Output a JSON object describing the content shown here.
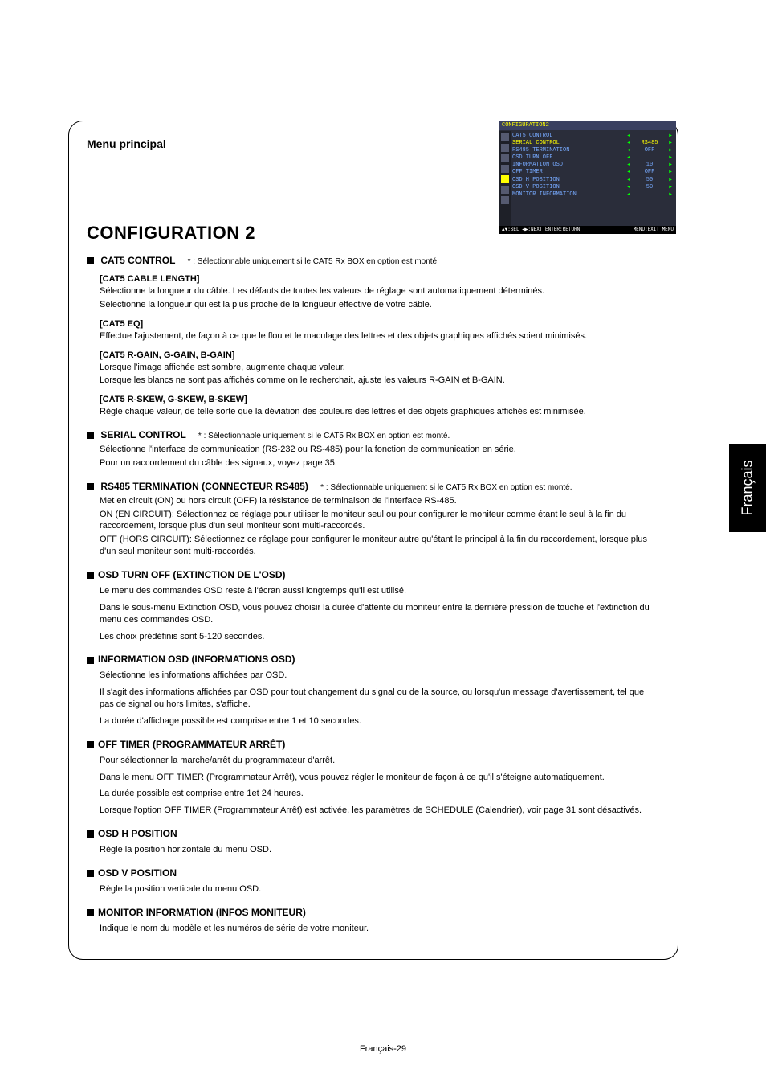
{
  "side_tab": "Français",
  "page_number": "Français-29",
  "menu_principal": "Menu principal",
  "config_title": "CONFIGURATION 2",
  "cat5": {
    "title": "CAT5 CONTROL",
    "note": "* : Sélectionnable uniquement si le CAT5 Rx BOX en option est monté.",
    "cable_length": {
      "title": "[CAT5 CABLE LENGTH]",
      "text1": "Sélectionne la longueur du câble. Les défauts de toutes les valeurs de réglage sont automatiquement déterminés.",
      "text2": "Sélectionne la longueur qui est la plus proche de la longueur effective de votre câble."
    },
    "eq": {
      "title": "[CAT5 EQ]",
      "text": "Effectue l'ajustement, de façon à ce que le flou et le maculage des lettres et des objets graphiques affichés soient minimisés."
    },
    "gain": {
      "title": "[CAT5 R-GAIN, G-GAIN, B-GAIN]",
      "text1": "Lorsque l'image affichée est sombre, augmente chaque valeur.",
      "text2": "Lorsque les blancs ne sont pas affichés comme on le recherchait, ajuste les valeurs R-GAIN et B-GAIN."
    },
    "skew": {
      "title": "[CAT5 R-SKEW, G-SKEW, B-SKEW]",
      "text": "Règle chaque valeur, de telle sorte que la déviation des couleurs des lettres et des objets graphiques affichés est minimisée."
    }
  },
  "serial": {
    "title": "SERIAL CONTROL",
    "note": "* : Sélectionnable uniquement si le CAT5 Rx BOX en option est monté.",
    "text1": "Sélectionne l'interface de communication (RS-232 ou RS-485) pour la fonction de communication en série.",
    "text2": "Pour un raccordement du câble des signaux, voyez page 35."
  },
  "rs485": {
    "title": "RS485 TERMINATION (CONNECTEUR RS485)",
    "note": "* : Sélectionnable uniquement si le CAT5 Rx BOX en option est monté.",
    "text1": "Met en circuit (ON) ou hors circuit (OFF) la résistance de terminaison de l'interface RS-485.",
    "text2": "ON (EN CIRCUIT): Sélectionnez ce réglage pour utiliser le moniteur seul ou pour configurer le moniteur comme étant le seul à la fin du raccordement, lorsque plus d'un seul moniteur sont multi-raccordés.",
    "text3": "OFF (HORS CIRCUIT): Sélectionnez ce réglage pour configurer le moniteur autre qu'étant le principal à la fin du raccordement, lorsque plus d'un seul moniteur sont multi-raccordés."
  },
  "osd_turnoff": {
    "title": "OSD TURN OFF (EXTINCTION DE L'OSD)",
    "text1": "Le menu des commandes OSD reste à l'écran aussi longtemps qu'il est utilisé.",
    "text2": "Dans le sous-menu Extinction OSD, vous pouvez choisir la durée d'attente du moniteur entre la dernière pression de touche et l'extinction du menu des commandes OSD.",
    "text3": "Les choix prédéfinis sont 5-120 secondes."
  },
  "info_osd": {
    "title": "INFORMATION OSD (INFORMATIONS OSD)",
    "text1": "Sélectionne les informations affichées par OSD.",
    "text2": "Il s'agit des informations affichées par OSD pour tout changement du signal ou de la source, ou lorsqu'un message d'avertissement, tel que pas de signal ou hors limites, s'affiche.",
    "text3": "La durée d'affichage possible est comprise entre 1 et 10 secondes."
  },
  "off_timer": {
    "title": "OFF TIMER (PROGRAMMATEUR ARRÊT)",
    "text1": "Pour sélectionner la marche/arrêt du programmateur d'arrêt.",
    "text2": "Dans le menu OFF TIMER (Programmateur Arrêt), vous pouvez régler le moniteur de façon à ce qu'il s'éteigne automatiquement.",
    "text3": "La durée possible est comprise entre 1et 24 heures.",
    "text4": "Lorsque l'option OFF TIMER (Programmateur Arrêt) est activée, les paramètres de SCHEDULE (Calendrier), voir page 31 sont désactivés."
  },
  "osd_h": {
    "title": "OSD H POSITION",
    "text": "Règle la position horizontale du menu OSD."
  },
  "osd_v": {
    "title": "OSD V POSITION",
    "text": "Règle la position verticale du menu OSD."
  },
  "monitor_info": {
    "title": "MONITOR INFORMATION (INFOS MONITEUR)",
    "text": "Indique le nom du modèle et les numéros de série de votre moniteur."
  },
  "osd_screenshot": {
    "header": "CONFIGURATION2",
    "rows": [
      {
        "label": "CAT5 CONTROL",
        "val": "",
        "sel": false
      },
      {
        "label": "SERIAL CONTROL",
        "val": "RS485",
        "sel": true
      },
      {
        "label": "RS485 TERMINATION",
        "val": "OFF",
        "sel": false
      },
      {
        "label": "OSD TURN OFF",
        "val": "",
        "sel": false
      },
      {
        "label": "INFORMATION OSD",
        "val": "10",
        "sel": false
      },
      {
        "label": "OFF TIMER",
        "val": "OFF",
        "sel": false
      },
      {
        "label": "OSD H POSITION",
        "val": "50",
        "sel": false
      },
      {
        "label": "OSD V POSITION",
        "val": "50",
        "sel": false
      },
      {
        "label": "MONITOR INFORMATION",
        "val": "",
        "sel": false
      }
    ],
    "footer_left": "▲▼:SEL  ◀▶:NEXT  ENTER:RETURN",
    "footer_right": "MENU:EXIT MENU"
  }
}
